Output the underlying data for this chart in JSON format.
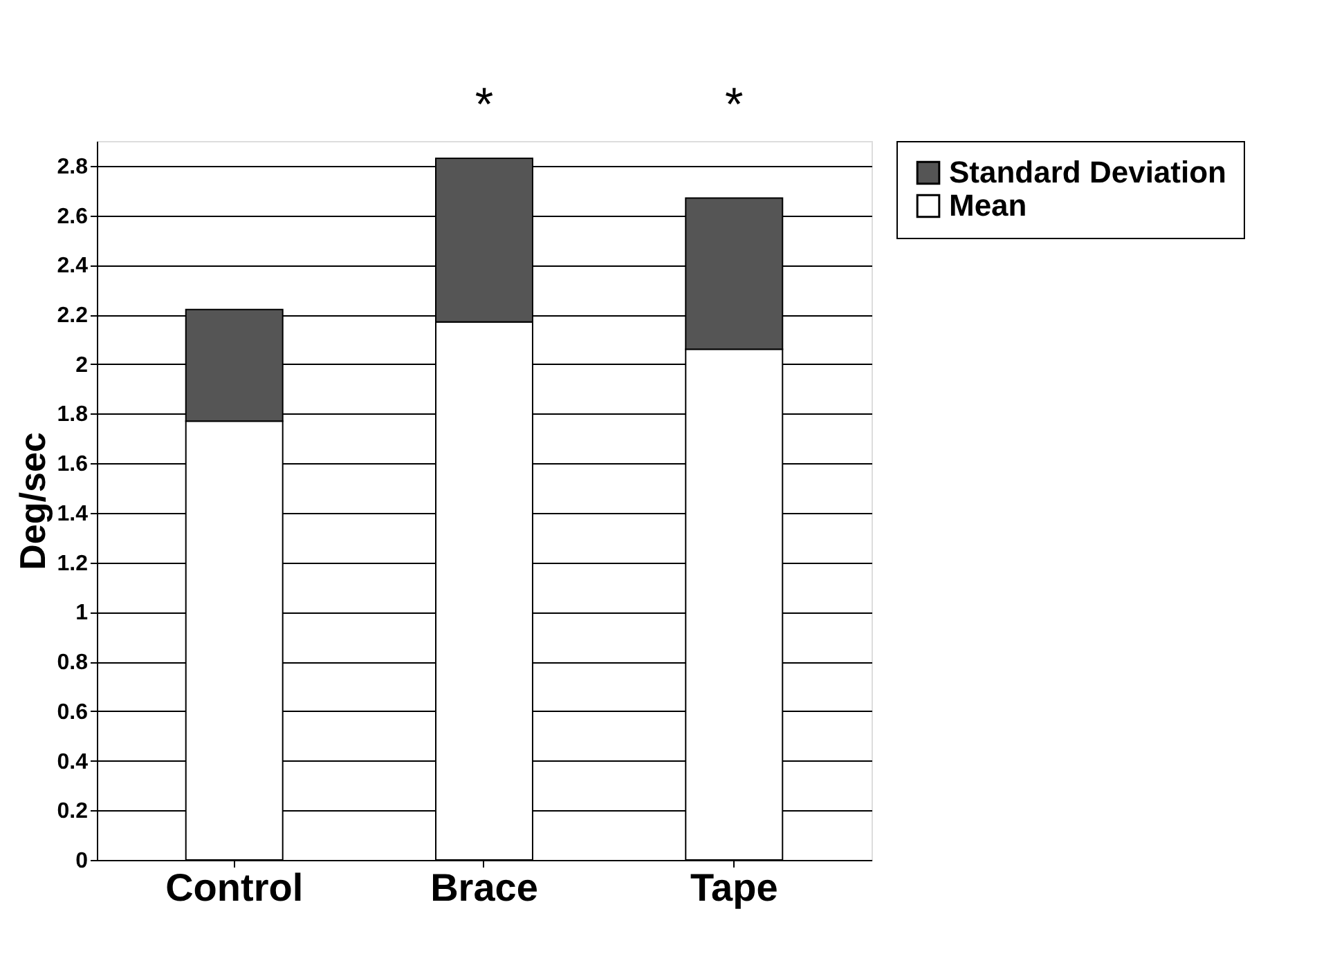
{
  "chart_data": {
    "type": "bar",
    "stacked": true,
    "ylabel": "Deg/sec",
    "categories": [
      "Control",
      "Brace",
      "Tape"
    ],
    "series": [
      {
        "name": "Mean",
        "color": "#ffffff",
        "values": [
          1.77,
          2.17,
          2.06
        ]
      },
      {
        "name": "Standard Deviation",
        "color": "#555555",
        "values": [
          0.45,
          0.66,
          0.61
        ]
      }
    ],
    "ylim": [
      0,
      2.9
    ],
    "yticks": [
      0,
      0.2,
      0.4,
      0.6,
      0.8,
      1,
      1.2,
      1.4,
      1.6,
      1.8,
      2,
      2.2,
      2.4,
      2.6,
      2.8
    ],
    "grid": "y",
    "legend": "right",
    "annotations": [
      "*",
      "*"
    ]
  }
}
